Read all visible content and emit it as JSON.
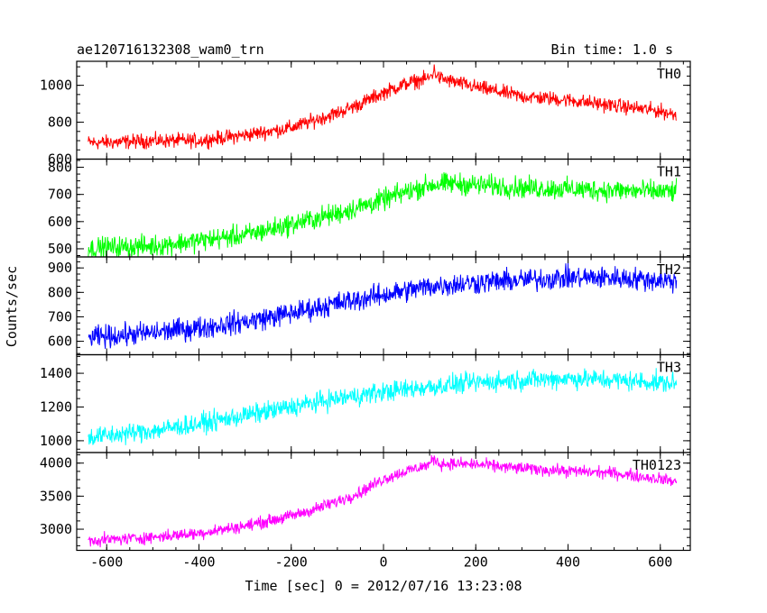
{
  "header": {
    "left_title": "ae120716132308_wam0_trn",
    "right_title": "Bin time: 1.0 s"
  },
  "axes": {
    "xlabel": "Time [sec] 0 = 2012/07/16 13:23:08",
    "ylabel": "Counts/sec",
    "xlim": [
      -665,
      665
    ],
    "xticks": [
      -600,
      -400,
      -200,
      0,
      200,
      400,
      600
    ]
  },
  "chart_data": [
    {
      "type": "line",
      "name": "TH0",
      "color": "#ff0000",
      "ylim": [
        600,
        1130
      ],
      "yticks": [
        600,
        800,
        1000
      ],
      "x": [
        -640,
        -600,
        -500,
        -400,
        -300,
        -200,
        -150,
        -100,
        -50,
        0,
        50,
        100,
        110,
        120,
        150,
        200,
        300,
        400,
        500,
        600,
        635
      ],
      "values": [
        690,
        690,
        700,
        700,
        730,
        770,
        810,
        850,
        900,
        960,
        1010,
        1040,
        1080,
        1040,
        1020,
        990,
        940,
        920,
        890,
        860,
        840
      ],
      "noise": 30
    },
    {
      "type": "line",
      "name": "TH1",
      "color": "#00ff00",
      "ylim": [
        470,
        830
      ],
      "yticks": [
        500,
        600,
        700,
        800
      ],
      "x": [
        -640,
        -600,
        -500,
        -400,
        -300,
        -200,
        -100,
        0,
        50,
        100,
        150,
        200,
        300,
        400,
        500,
        600,
        635
      ],
      "values": [
        500,
        505,
        510,
        530,
        550,
        590,
        630,
        680,
        710,
        735,
        740,
        735,
        725,
        720,
        715,
        710,
        710
      ],
      "noise": 30
    },
    {
      "type": "line",
      "name": "TH2",
      "color": "#0000ff",
      "ylim": [
        545,
        945
      ],
      "yticks": [
        600,
        700,
        800,
        900
      ],
      "x": [
        -640,
        -600,
        -500,
        -400,
        -300,
        -200,
        -100,
        0,
        100,
        200,
        300,
        400,
        500,
        600,
        635
      ],
      "values": [
        615,
        620,
        635,
        655,
        680,
        715,
        755,
        790,
        825,
        840,
        850,
        860,
        860,
        850,
        845
      ],
      "noise": 35
    },
    {
      "type": "line",
      "name": "TH3",
      "color": "#00ffff",
      "ylim": [
        930,
        1510
      ],
      "yticks": [
        1000,
        1200,
        1400
      ],
      "x": [
        -640,
        -600,
        -500,
        -400,
        -300,
        -200,
        -100,
        0,
        100,
        200,
        300,
        400,
        500,
        600,
        635
      ],
      "values": [
        1020,
        1030,
        1060,
        1100,
        1150,
        1200,
        1250,
        1290,
        1320,
        1345,
        1360,
        1370,
        1360,
        1345,
        1340
      ],
      "noise": 45
    },
    {
      "type": "line",
      "name": "TH0123",
      "color": "#ff00ff",
      "ylim": [
        2680,
        4160
      ],
      "yticks": [
        3000,
        3500,
        4000
      ],
      "x": [
        -640,
        -600,
        -500,
        -400,
        -300,
        -200,
        -150,
        -100,
        -50,
        0,
        50,
        100,
        110,
        120,
        150,
        200,
        300,
        400,
        500,
        600,
        635
      ],
      "values": [
        2830,
        2840,
        2880,
        2940,
        3050,
        3200,
        3300,
        3420,
        3560,
        3760,
        3880,
        3980,
        4080,
        3990,
        3990,
        3980,
        3920,
        3880,
        3850,
        3760,
        3720
      ],
      "noise": 70
    }
  ]
}
